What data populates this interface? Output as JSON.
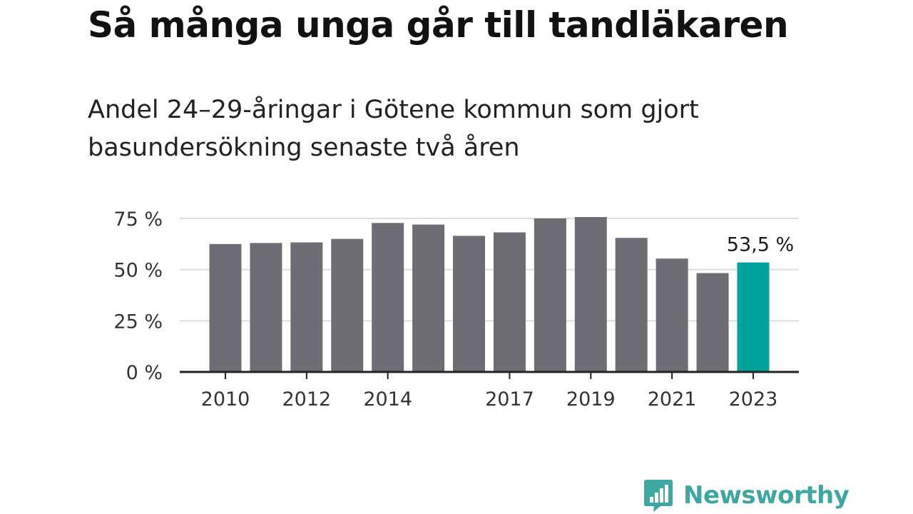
{
  "title": "Så många unga går till tandläkaren",
  "subtitle": "Andel 24–29-åringar i Götene kommun som gjort basundersökning senaste två åren",
  "brand": "Newsworthy",
  "colors": {
    "bar": "#6e6d73",
    "highlight": "#00a39a",
    "grid": "#dddddd",
    "axis": "#222222",
    "brand": "#3ea8a0"
  },
  "chart_data": {
    "type": "bar",
    "categories": [
      "2010",
      "2011",
      "2012",
      "2013",
      "2014",
      "2015",
      "2016",
      "2017",
      "2018",
      "2019",
      "2020",
      "2021",
      "2022",
      "2023"
    ],
    "values": [
      62.5,
      63,
      63.3,
      65,
      72.8,
      72,
      66.5,
      68.2,
      75,
      75.7,
      65.5,
      55.4,
      48.3,
      53.5
    ],
    "x_tick_labels": [
      "2010",
      "2012",
      "2014",
      "2017",
      "2019",
      "2021",
      "2023"
    ],
    "y_ticks": [
      0,
      25,
      50,
      75
    ],
    "y_tick_labels": [
      "0 %",
      "25 %",
      "50 %",
      "75 %"
    ],
    "ylim": [
      0,
      75
    ],
    "grid": true,
    "highlight": {
      "category": "2023",
      "label": "53,5 %"
    }
  }
}
